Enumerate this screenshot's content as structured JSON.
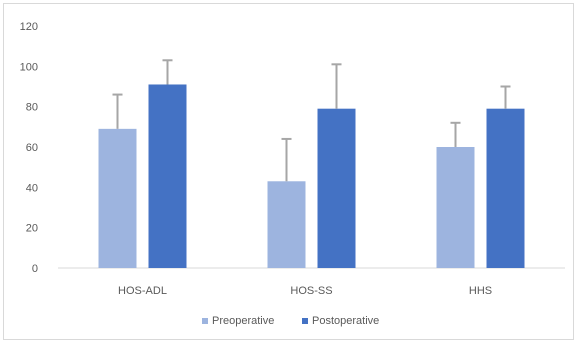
{
  "chart_data": {
    "type": "bar",
    "title": "",
    "xlabel": "",
    "ylabel": "",
    "categories": [
      "HOS-ADL",
      "HOS-SS",
      "HHS"
    ],
    "series": [
      {
        "name": "Preoperative",
        "color": "#9db4df",
        "values": [
          69,
          43,
          60
        ],
        "error": [
          17,
          21,
          12
        ]
      },
      {
        "name": "Postoperative",
        "color": "#4472c4",
        "values": [
          91,
          79,
          79
        ],
        "error": [
          12,
          22,
          11
        ]
      }
    ],
    "ylim": [
      0,
      120
    ],
    "yticks": [
      0,
      20,
      40,
      60,
      80,
      100,
      120
    ],
    "error_bar_color": "#a6a6a6",
    "grid": false,
    "legend_position": "bottom"
  }
}
